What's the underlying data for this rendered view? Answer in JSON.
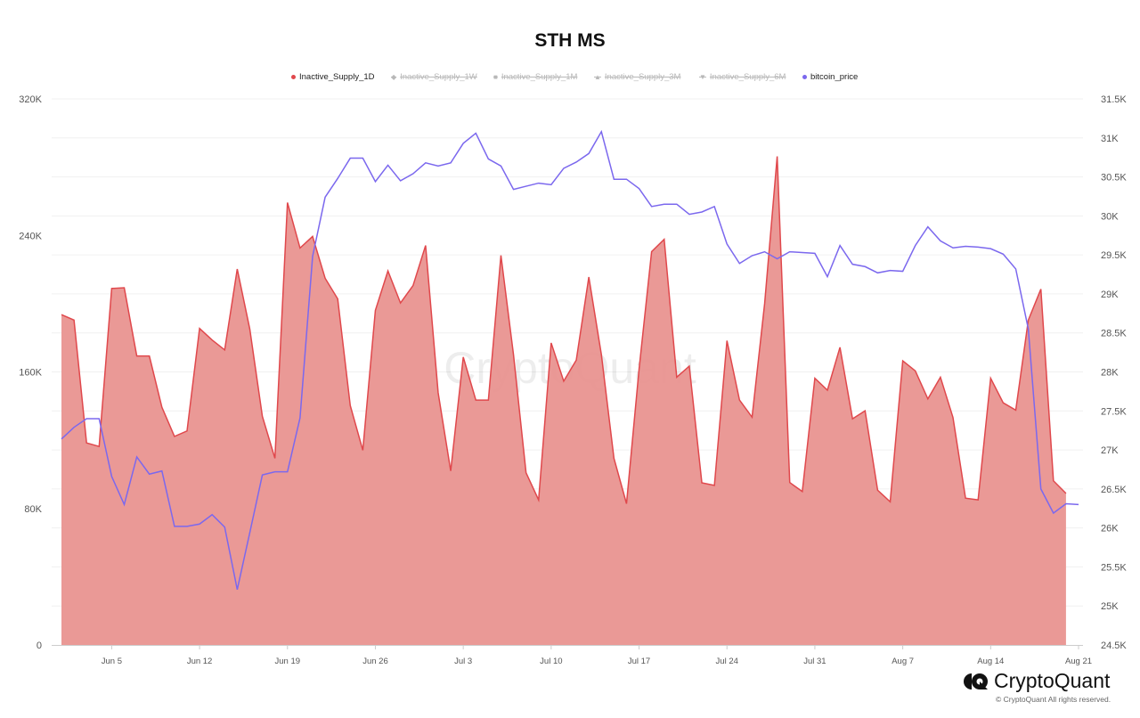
{
  "chart_data": {
    "type": "area+line",
    "title": "STH MS",
    "legend": {
      "placement": "top",
      "items": [
        {
          "label": "Inactive_Supply_1D",
          "enabled": true,
          "color": "#e0484c",
          "symbol": "circle"
        },
        {
          "label": "Inactive_Supply_1W",
          "enabled": false,
          "color": "#b8b8b8",
          "symbol": "diamond"
        },
        {
          "label": "Inactive_Supply_1M",
          "enabled": false,
          "color": "#b8b8b8",
          "symbol": "square"
        },
        {
          "label": "Inactive_Supply_3M",
          "enabled": false,
          "color": "#b8b8b8",
          "symbol": "triangle"
        },
        {
          "label": "Inactive_Supply_6M",
          "enabled": false,
          "color": "#b8b8b8",
          "symbol": "triangle-down"
        },
        {
          "label": "bitcoin_price",
          "enabled": true,
          "color": "#7b68ee",
          "symbol": "circle"
        }
      ]
    },
    "x": [
      "Jun 1",
      "Jun 2",
      "Jun 3",
      "Jun 4",
      "Jun 5",
      "Jun 6",
      "Jun 7",
      "Jun 8",
      "Jun 9",
      "Jun 10",
      "Jun 11",
      "Jun 12",
      "Jun 13",
      "Jun 14",
      "Jun 15",
      "Jun 16",
      "Jun 17",
      "Jun 18",
      "Jun 19",
      "Jun 20",
      "Jun 21",
      "Jun 22",
      "Jun 23",
      "Jun 24",
      "Jun 25",
      "Jun 26",
      "Jun 27",
      "Jun 28",
      "Jun 29",
      "Jun 30",
      "Jul 1",
      "Jul 2",
      "Jul 3",
      "Jul 4",
      "Jul 5",
      "Jul 6",
      "Jul 7",
      "Jul 8",
      "Jul 9",
      "Jul 10",
      "Jul 11",
      "Jul 12",
      "Jul 13",
      "Jul 14",
      "Jul 15",
      "Jul 16",
      "Jul 17",
      "Jul 18",
      "Jul 19",
      "Jul 20",
      "Jul 21",
      "Jul 22",
      "Jul 23",
      "Jul 24",
      "Jul 25",
      "Jul 26",
      "Jul 27",
      "Jul 28",
      "Jul 29",
      "Jul 30",
      "Jul 31",
      "Aug 1",
      "Aug 2",
      "Aug 3",
      "Aug 4",
      "Aug 5",
      "Aug 6",
      "Aug 7",
      "Aug 8",
      "Aug 9",
      "Aug 10",
      "Aug 11",
      "Aug 12",
      "Aug 13",
      "Aug 14",
      "Aug 15",
      "Aug 16",
      "Aug 17",
      "Aug 18",
      "Aug 19",
      "Aug 20",
      "Aug 21"
    ],
    "x_ticks": [
      "Jun 5",
      "Jun 12",
      "Jun 19",
      "Jun 26",
      "Jul 3",
      "Jul 10",
      "Jul 17",
      "Jul 24",
      "Jul 31",
      "Aug 7",
      "Aug 14",
      "Aug 21"
    ],
    "y_left": {
      "ticks": [
        "0",
        "80K",
        "160K",
        "240K",
        "320K"
      ],
      "range": [
        0,
        320000
      ]
    },
    "y_right": {
      "ticks": [
        "24.5K",
        "25K",
        "25.5K",
        "26K",
        "26.5K",
        "27K",
        "27.5K",
        "28K",
        "28.5K",
        "29K",
        "29.5K",
        "30K",
        "30.5K",
        "31K",
        "31.5K"
      ],
      "range": [
        24500,
        31500
      ]
    },
    "grid": true,
    "series": [
      {
        "name": "Inactive_Supply_1D",
        "type": "area",
        "axis": "left",
        "color": "#e0484c",
        "fill": "#e99390",
        "values": [
          193600,
          190400,
          118400,
          116300,
          208900,
          209300,
          169300,
          169300,
          139300,
          122200,
          125400,
          185500,
          178700,
          172900,
          220300,
          185100,
          134000,
          109400,
          259200,
          232600,
          239400,
          214900,
          202800,
          140300,
          114100,
          196100,
          219200,
          200400,
          210600,
          234100,
          147800,
          102000,
          168700,
          143500,
          143500,
          228300,
          170100,
          100900,
          85000,
          177000,
          154600,
          166900,
          215600,
          170100,
          109400,
          82800,
          161600,
          230500,
          237700,
          156900,
          163400,
          95000,
          93500,
          178300,
          143500,
          133500,
          200000,
          286300,
          95200,
          89900,
          156300,
          149300,
          174400,
          132500,
          137200,
          90700,
          83900,
          166500,
          160600,
          144200,
          156900,
          133300,
          86000,
          85000,
          156300,
          141900,
          137600,
          190400,
          208500,
          96200,
          88800,
          null
        ]
      },
      {
        "name": "bitcoin_price",
        "type": "line",
        "axis": "right",
        "color": "#7b68ee",
        "values": [
          27140,
          27290,
          27400,
          27400,
          26660,
          26300,
          26910,
          26690,
          26730,
          26020,
          26020,
          26050,
          26170,
          26010,
          25210,
          25940,
          26680,
          26720,
          26720,
          27410,
          29480,
          30240,
          30480,
          30740,
          30740,
          30440,
          30650,
          30450,
          30540,
          30680,
          30640,
          30680,
          30930,
          31060,
          30730,
          30640,
          30340,
          30380,
          30420,
          30400,
          30610,
          30690,
          30800,
          31080,
          30470,
          30470,
          30350,
          30120,
          30150,
          30150,
          30020,
          30050,
          30120,
          29640,
          29390,
          29490,
          29540,
          29450,
          29540,
          29530,
          29520,
          29220,
          29620,
          29380,
          29350,
          29270,
          29300,
          29290,
          29620,
          29860,
          29680,
          29590,
          29610,
          29600,
          29580,
          29510,
          29320,
          28550,
          26500,
          26190,
          26310,
          26300
        ]
      }
    ]
  },
  "watermark": "CryptoQuant",
  "footer": {
    "brand": "CryptoQuant",
    "copyright": "© CryptoQuant All rights reserved."
  }
}
